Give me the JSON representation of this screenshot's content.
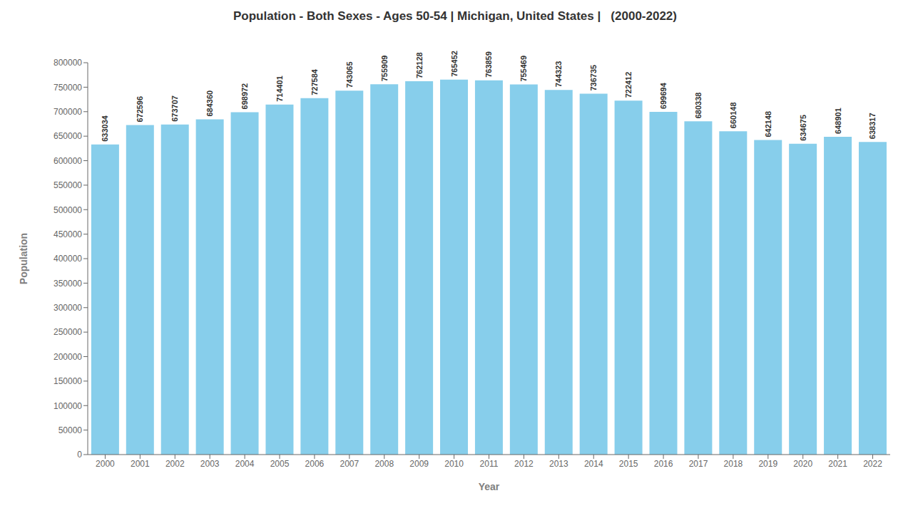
{
  "chart_data": {
    "type": "bar",
    "title": "Population - Both Sexes - Ages 50-54 | Michigan, United States |   (2000-2022)",
    "xlabel": "Year",
    "ylabel": "Population",
    "categories": [
      "2000",
      "2001",
      "2002",
      "2003",
      "2004",
      "2005",
      "2006",
      "2007",
      "2008",
      "2009",
      "2010",
      "2011",
      "2012",
      "2013",
      "2014",
      "2015",
      "2016",
      "2017",
      "2018",
      "2019",
      "2020",
      "2021",
      "2022"
    ],
    "values": [
      633034,
      672596,
      673707,
      684360,
      698972,
      714401,
      727584,
      743065,
      755909,
      762128,
      765452,
      763859,
      755469,
      744323,
      736735,
      722412,
      699694,
      680338,
      660148,
      642148,
      634675,
      648901,
      638317
    ],
    "color": "#87ceeb",
    "ylim": [
      0,
      800000
    ],
    "yticks": [
      0,
      50000,
      100000,
      150000,
      200000,
      250000,
      300000,
      350000,
      400000,
      450000,
      500000,
      550000,
      600000,
      650000,
      700000,
      750000,
      800000
    ],
    "grid": false,
    "data_labels": true
  }
}
